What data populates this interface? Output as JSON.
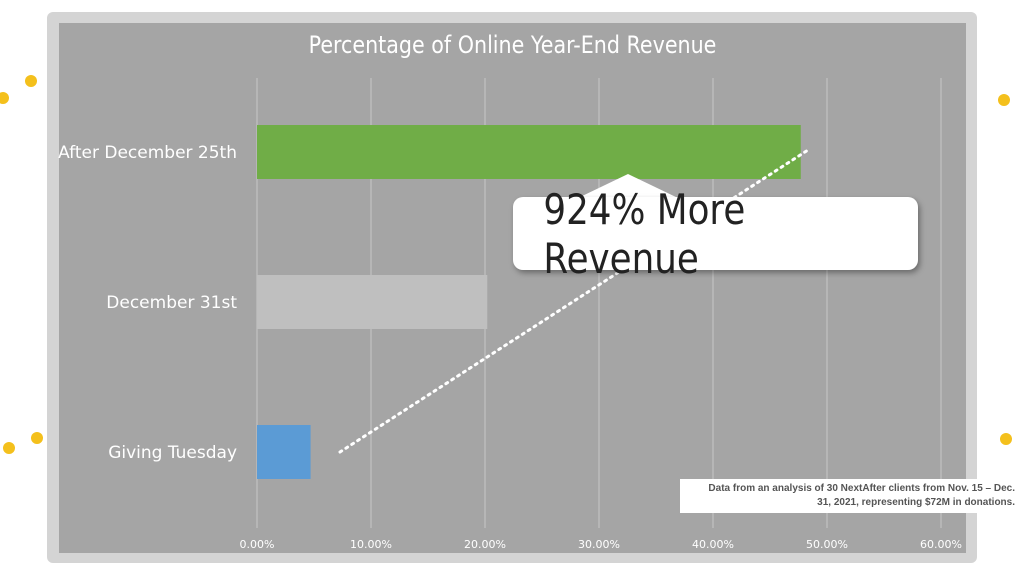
{
  "chart_data": {
    "type": "bar",
    "orientation": "horizontal",
    "title": "Percentage of Online Year-End Revenue",
    "categories": [
      "After December 25th",
      "December 31st",
      "Giving Tuesday"
    ],
    "values": [
      47.7,
      20.2,
      4.7
    ],
    "colors": [
      "#70ad47",
      "#bfbfbf",
      "#5b9bd5"
    ],
    "xlim": [
      0,
      60
    ],
    "x_ticks": [
      0,
      10,
      20,
      30,
      40,
      50,
      60
    ],
    "x_tick_labels": [
      "0.00%",
      "10.00%",
      "20.00%",
      "30.00%",
      "40.00%",
      "50.00%",
      "60.00%"
    ],
    "xlabel": "",
    "ylabel": "",
    "grid": "vertical",
    "legend": "none"
  },
  "annotation": {
    "callout_text": "924% More Revenue",
    "source_line1": "Data from an analysis of 30 NextAfter clients from Nov. 15 – Dec.",
    "source_line2": "31, 2021, representing $72M in donations."
  },
  "colors": {
    "background": "#ffffff",
    "frame": "#d4d4d4",
    "plot_background": "#a5a5a5",
    "gridline": "#c8c8c8",
    "accent_dots": "#f4c01c"
  }
}
